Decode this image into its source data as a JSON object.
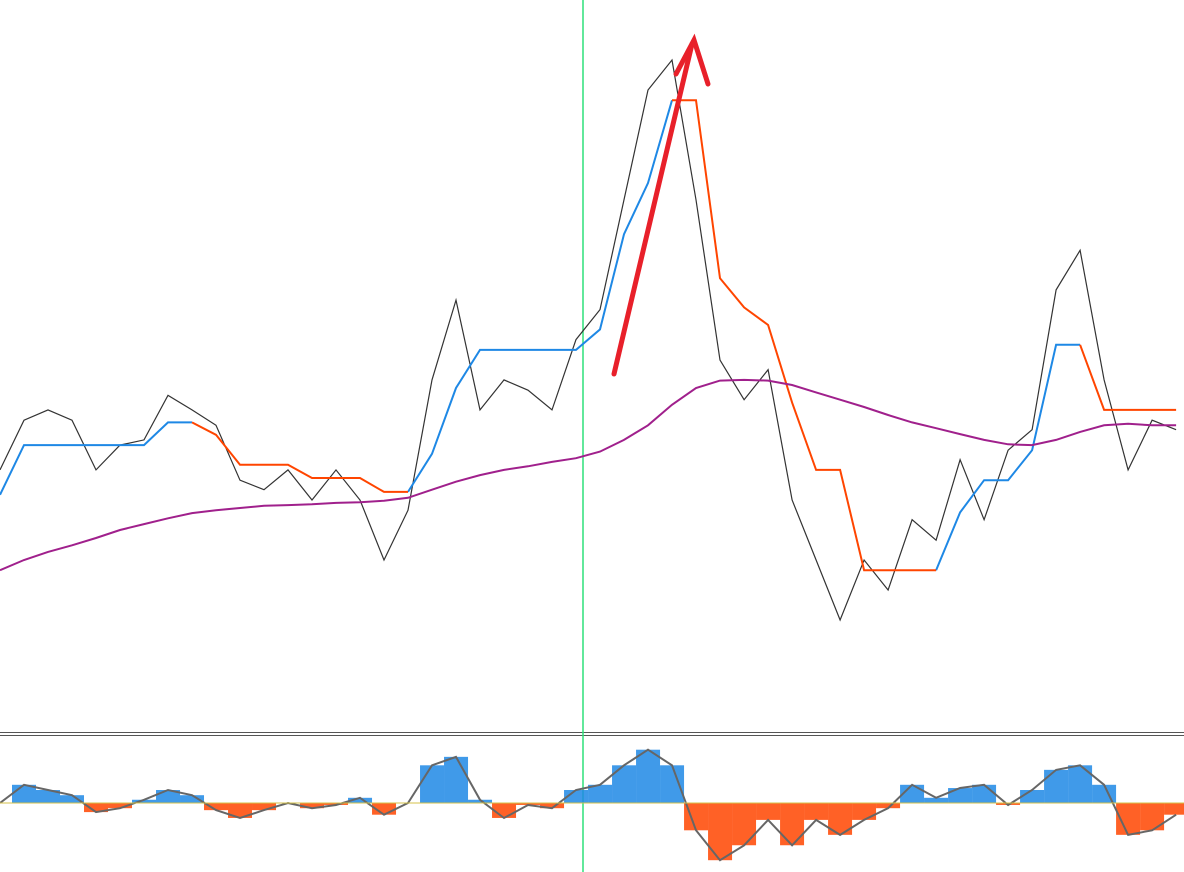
{
  "chart_data": [
    {
      "type": "line",
      "x": [
        0,
        1,
        2,
        3,
        4,
        5,
        6,
        7,
        8,
        9,
        10,
        11,
        12,
        13,
        14,
        15,
        16,
        17,
        18,
        19,
        20,
        21,
        22,
        23,
        24,
        25,
        26,
        27,
        28,
        29,
        30,
        31,
        32,
        33,
        34,
        35,
        36,
        37,
        38,
        39,
        40,
        41,
        42,
        43,
        44,
        45,
        46,
        47,
        48,
        49
      ],
      "xlim": [
        0,
        49.33
      ],
      "ylim": [
        0,
        100
      ],
      "series": [
        {
          "color": "#333333",
          "values": [
            35.8,
            42.6,
            44.0,
            42.6,
            35.8,
            39.2,
            39.9,
            46.0,
            44.0,
            41.9,
            34.4,
            33.1,
            35.8,
            31.7,
            35.8,
            31.7,
            23.5,
            30.3,
            48.1,
            59.0,
            44.0,
            48.1,
            46.7,
            44.0,
            53.6,
            57.7,
            72.7,
            87.7,
            91.8,
            72.7,
            50.8,
            45.4,
            49.5,
            31.7,
            23.5,
            15.3,
            23.5,
            19.4,
            29.0,
            26.2,
            37.2,
            29.0,
            38.5,
            41.3,
            60.4,
            65.8,
            48.1,
            35.8,
            42.6,
            41.3
          ]
        },
        {
          "color": "#1e88e5",
          "values": [
            32.4,
            39.2,
            39.2,
            39.2,
            39.2,
            39.2,
            39.2,
            42.3,
            42.3,
            null,
            null,
            null,
            null,
            null,
            null,
            null,
            null,
            32.8,
            38.0,
            47.0,
            52.2,
            52.2,
            52.2,
            52.2,
            52.2,
            55.0,
            68.0,
            75.0,
            86.3,
            null,
            null,
            null,
            null,
            null,
            null,
            null,
            null,
            null,
            null,
            22.1,
            30.0,
            34.4,
            34.4,
            38.5,
            52.9,
            52.9,
            null,
            null,
            null,
            null
          ]
        },
        {
          "color": "#ff4500",
          "values": [
            null,
            null,
            null,
            null,
            null,
            null,
            null,
            null,
            42.3,
            40.6,
            36.5,
            36.5,
            36.5,
            34.7,
            34.7,
            34.7,
            32.8,
            32.8,
            null,
            null,
            null,
            null,
            null,
            null,
            null,
            null,
            null,
            null,
            86.3,
            86.3,
            62.0,
            58.0,
            55.6,
            45.0,
            35.8,
            35.8,
            22.1,
            22.1,
            22.1,
            22.1,
            null,
            null,
            null,
            null,
            null,
            52.9,
            44.0,
            44.0,
            44.0,
            44.0
          ]
        },
        {
          "color": "#a0208c",
          "values": [
            22.1,
            23.5,
            24.6,
            25.5,
            26.5,
            27.6,
            28.4,
            29.2,
            29.9,
            30.3,
            30.6,
            30.9,
            31.0,
            31.1,
            31.3,
            31.4,
            31.6,
            32.0,
            33.1,
            34.2,
            35.1,
            35.8,
            36.3,
            36.9,
            37.4,
            38.3,
            39.9,
            41.9,
            44.7,
            47.0,
            48.0,
            48.1,
            48.0,
            47.4,
            46.4,
            45.4,
            44.4,
            43.3,
            42.3,
            41.5,
            40.7,
            39.9,
            39.3,
            39.2,
            39.9,
            41.0,
            41.9,
            42.1,
            41.9,
            41.9
          ]
        }
      ]
    },
    {
      "type": "bar",
      "x": [
        0,
        1,
        2,
        3,
        4,
        5,
        6,
        7,
        8,
        9,
        10,
        11,
        12,
        13,
        14,
        15,
        16,
        17,
        18,
        19,
        20,
        21,
        22,
        23,
        24,
        25,
        26,
        27,
        28,
        29,
        30,
        31,
        32,
        33,
        34,
        35,
        36,
        37,
        38,
        39,
        40,
        41,
        42,
        43,
        44,
        45,
        46,
        47,
        48,
        49
      ],
      "xlim": [
        0,
        49.33
      ],
      "ylim": [
        -1,
        1
      ],
      "pos_color": "#1e88e5",
      "neg_color": "#ff4500",
      "values": [
        0,
        0.28,
        0.2,
        0.12,
        -0.14,
        -0.08,
        0.05,
        0.2,
        0.12,
        -0.11,
        -0.23,
        -0.11,
        0,
        -0.08,
        -0.03,
        0.08,
        -0.18,
        0,
        0.58,
        0.71,
        0.05,
        -0.23,
        -0.03,
        -0.08,
        0.2,
        0.28,
        0.58,
        0.82,
        0.58,
        -0.42,
        -0.88,
        -0.65,
        -0.26,
        -0.65,
        -0.26,
        -0.49,
        -0.26,
        -0.08,
        0.28,
        0.08,
        0.23,
        0.28,
        -0.03,
        0.2,
        0.51,
        0.58,
        0.28,
        -0.49,
        -0.42,
        -0.18
      ]
    }
  ]
}
